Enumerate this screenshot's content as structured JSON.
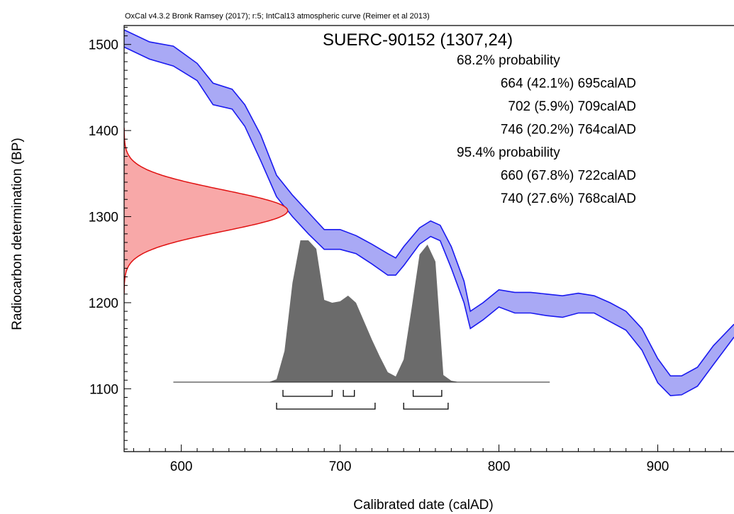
{
  "chart_data": {
    "type": "area",
    "header": "OxCal v4.3.2 Bronk Ramsey (2017); r:5; IntCal13 atmospheric curve (Reimer et al 2013)",
    "title": "SUERC-90152 (1307,24)",
    "xlabel": "Calibrated date (calAD)",
    "ylabel": "Radiocarbon determination (BP)",
    "xlim": [
      564,
      948
    ],
    "ylim": [
      1027,
      1522
    ],
    "x_ticks": [
      600,
      700,
      800,
      900
    ],
    "y_ticks": [
      1100,
      1200,
      1300,
      1400,
      1500
    ],
    "colors": {
      "curve_fill": "#a9a9f5",
      "curve_line": "#1a1af0",
      "measurement_fill": "#f8a8a8",
      "measurement_line": "#e01010",
      "posterior_fill": "#6b6b6b"
    },
    "ranges": [
      {
        "label": "68.2% probability",
        "items": [
          "664 (42.1%) 695calAD",
          "702 (5.9%) 709calAD",
          "746 (20.2%) 764calAD"
        ],
        "intervals": [
          [
            664,
            695
          ],
          [
            702,
            709
          ],
          [
            746,
            764
          ]
        ]
      },
      {
        "label": "95.4% probability",
        "items": [
          "660 (67.8%) 722calAD",
          "740 (27.6%) 768calAD"
        ],
        "intervals": [
          [
            660,
            722
          ],
          [
            740,
            768
          ]
        ]
      }
    ],
    "calibration_curve": {
      "name": "IntCal13",
      "x": [
        564,
        580,
        595,
        610,
        620,
        632,
        640,
        650,
        660,
        670,
        680,
        690,
        700,
        710,
        720,
        730,
        735,
        740,
        750,
        757,
        763,
        770,
        778,
        782,
        790,
        800,
        810,
        820,
        830,
        840,
        850,
        860,
        870,
        880,
        890,
        900,
        908,
        915,
        925,
        935,
        948
      ],
      "upper": [
        1517,
        1503,
        1498,
        1478,
        1455,
        1448,
        1430,
        1395,
        1348,
        1325,
        1305,
        1285,
        1285,
        1278,
        1268,
        1257,
        1252,
        1265,
        1287,
        1295,
        1290,
        1265,
        1225,
        1190,
        1200,
        1215,
        1212,
        1212,
        1210,
        1208,
        1211,
        1208,
        1200,
        1190,
        1170,
        1135,
        1115,
        1115,
        1125,
        1150,
        1175
      ],
      "lower": [
        1497,
        1483,
        1475,
        1458,
        1430,
        1425,
        1405,
        1365,
        1323,
        1300,
        1280,
        1262,
        1262,
        1257,
        1245,
        1232,
        1232,
        1243,
        1268,
        1277,
        1272,
        1240,
        1200,
        1170,
        1180,
        1195,
        1188,
        1188,
        1185,
        1183,
        1188,
        1188,
        1178,
        1168,
        1145,
        1107,
        1092,
        1093,
        1103,
        1128,
        1160
      ]
    },
    "measurement": {
      "mean": 1307,
      "sigma": 24,
      "peak_calAD": 667
    },
    "posterior": {
      "x": [
        595,
        655,
        660,
        665,
        670,
        675,
        680,
        685,
        690,
        695,
        700,
        705,
        710,
        715,
        720,
        725,
        730,
        735,
        740,
        745,
        750,
        755,
        760,
        765,
        770,
        775,
        832
      ],
      "density": [
        0,
        0,
        0.02,
        0.22,
        0.7,
        1.0,
        1.0,
        0.94,
        0.58,
        0.56,
        0.57,
        0.61,
        0.56,
        0.43,
        0.3,
        0.18,
        0.07,
        0.04,
        0.16,
        0.52,
        0.9,
        0.97,
        0.85,
        0.05,
        0.01,
        0,
        0
      ]
    }
  }
}
